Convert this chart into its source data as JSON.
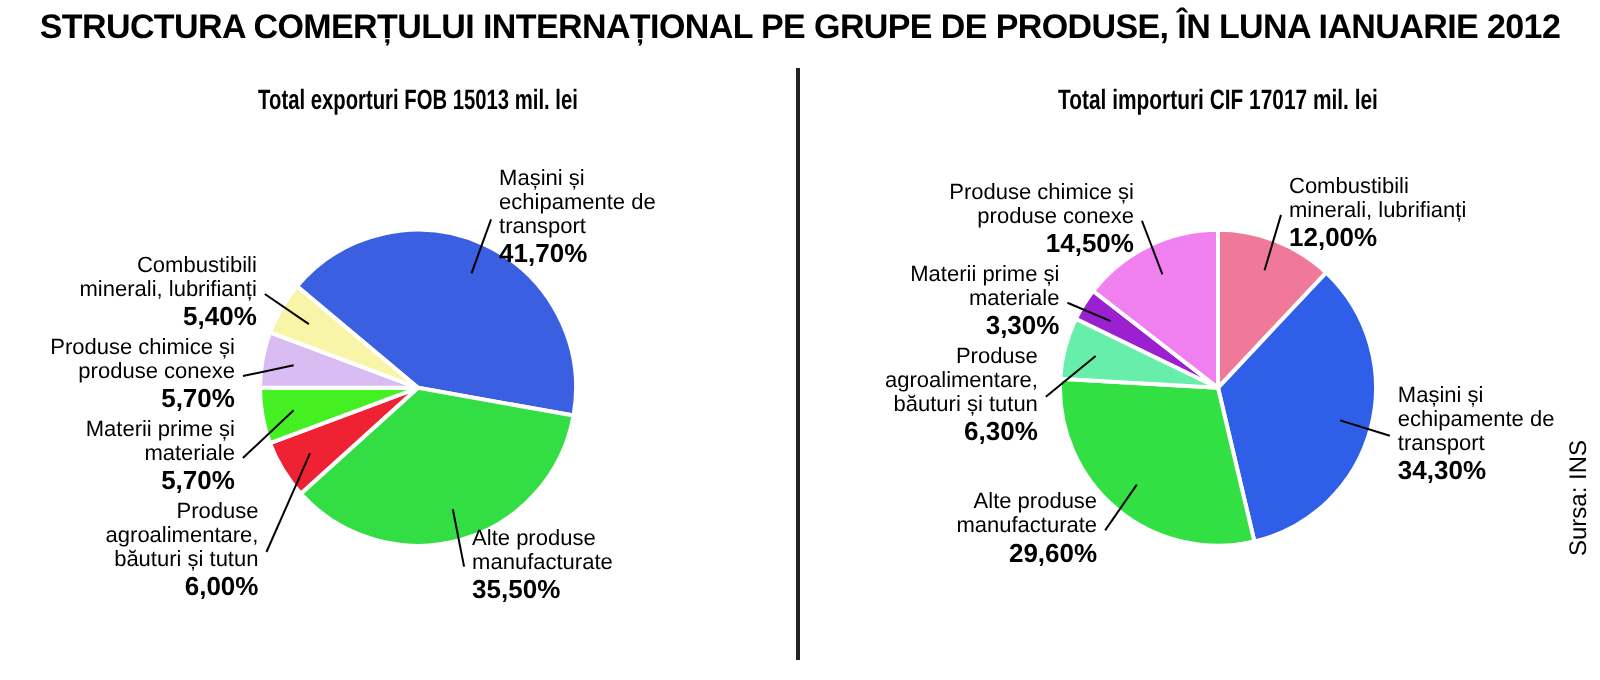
{
  "chart_data": [
    {
      "type": "pie",
      "title": "STRUCTURA COMERȚULUI INTERNAȚIONAL PE GRUPE DE PRODUSE, ÎN LUNA IANUARIE 2012",
      "subtitle": "Total exporturi FOB 15013 mil. lei",
      "categories": [
        "Mașini și echipamente de transport",
        "Alte produse manufacturate",
        "Produse agroalimentare, băuturi și tutun",
        "Materii prime și materiale",
        "Produse chimice și produse conexe",
        "Combustibili minerali, lubrifianți"
      ],
      "values": [
        41.7,
        35.5,
        6.0,
        5.7,
        5.7,
        5.4
      ],
      "value_labels": [
        "41,70%",
        "35,50%",
        "6,00%",
        "5,70%",
        "5,70%",
        "5,40%"
      ],
      "colors": [
        "#3a5fe0",
        "#33dd44",
        "#ee2233",
        "#44f022",
        "#d8bcf2",
        "#f8f4a8"
      ],
      "legend": false
    },
    {
      "type": "pie",
      "title": "Total importuri CIF 17017 mil. lei",
      "categories": [
        "Combustibili minerali, lubrifianți",
        "Mașini și echipamente de transport",
        "Alte produse manufacturate",
        "Produse agroalimentare, băuturi și tutun",
        "Materii prime și materiale",
        "Produse chimice și produse conexe"
      ],
      "values": [
        12.0,
        34.3,
        29.6,
        6.3,
        3.3,
        14.5
      ],
      "value_labels": [
        "12,00%",
        "34,30%",
        "29,60%",
        "6,30%",
        "3,30%",
        "14,50%"
      ],
      "colors": [
        "#f07898",
        "#2f5ee8",
        "#33e044",
        "#66eeaa",
        "#9a20d0",
        "#f080f0"
      ],
      "legend": false,
      "annotations": [
        "Sursa: INS"
      ]
    }
  ]
}
